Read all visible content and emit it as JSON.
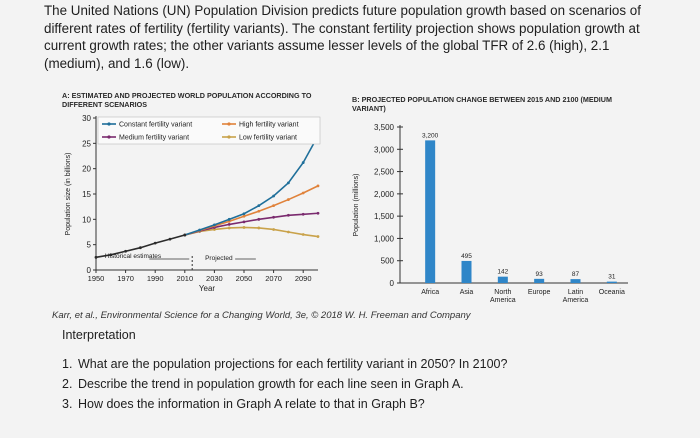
{
  "intro": "The United Nations (UN) Population Division predicts future population growth based on scenarios of different rates of fertility (fertility variants). The constant fertility projection shows population growth at current growth rates; the other variants assume lesser levels of the global TFR of 2.6 (high), 2.1 (medium), and 1.6 (low).",
  "credit": "Karr, et al., Environmental Science for a Changing World, 3e, © 2018 W. H. Freeman and Company",
  "interpretation": "Interpretation",
  "questions": [
    {
      "num": "1.",
      "text": "What are the population projections for each fertility variant in 2050? In 2100?"
    },
    {
      "num": "2.",
      "text": "Describe the trend in population growth for each line seen in Graph A."
    },
    {
      "num": "3.",
      "text": "How does the information in Graph A relate to that in Graph B?"
    }
  ],
  "colors": {
    "constant": "#1f6f9a",
    "high": "#e0823a",
    "medium": "#7a2a6e",
    "low": "#c9a24a",
    "bars": "#2f86c8"
  },
  "chart_data": [
    {
      "type": "line",
      "title": "A: ESTIMATED AND PROJECTED WORLD POPULATION ACCORDING TO DIFFERENT SCENARIOS",
      "xlabel": "Year",
      "ylabel": "Population size (in billions)",
      "xlim": [
        1950,
        2100
      ],
      "ylim": [
        0,
        30
      ],
      "xticks": [
        1950,
        1970,
        1990,
        2010,
        2030,
        2050,
        2070,
        2090
      ],
      "yticks": [
        0,
        5,
        10,
        15,
        20,
        25,
        30
      ],
      "legend_position": "top",
      "annotations": {
        "historical": "Historical estimates",
        "projected": "Projected"
      },
      "historical": {
        "x": [
          1950,
          1960,
          1970,
          1980,
          1990,
          2000,
          2010
        ],
        "y": [
          2.5,
          3.0,
          3.7,
          4.4,
          5.3,
          6.1,
          6.9
        ]
      },
      "series": [
        {
          "name": "Constant fertility variant",
          "key": "constant",
          "x": [
            2010,
            2020,
            2030,
            2040,
            2050,
            2060,
            2070,
            2080,
            2090,
            2100
          ],
          "y": [
            6.9,
            7.9,
            8.9,
            10.0,
            11.1,
            12.7,
            14.6,
            17.2,
            21.2,
            26.5
          ]
        },
        {
          "name": "High fertility variant",
          "key": "high",
          "x": [
            2010,
            2020,
            2030,
            2040,
            2050,
            2060,
            2070,
            2080,
            2090,
            2100
          ],
          "y": [
            6.9,
            7.8,
            8.7,
            9.6,
            10.6,
            11.6,
            12.7,
            13.9,
            15.2,
            16.6
          ]
        },
        {
          "name": "Medium fertility variant",
          "key": "medium",
          "x": [
            2010,
            2020,
            2030,
            2040,
            2050,
            2060,
            2070,
            2080,
            2090,
            2100
          ],
          "y": [
            6.9,
            7.7,
            8.4,
            9.0,
            9.5,
            10.0,
            10.4,
            10.8,
            11.0,
            11.2
          ]
        },
        {
          "name": "Low fertility variant",
          "key": "low",
          "x": [
            2010,
            2020,
            2030,
            2040,
            2050,
            2060,
            2070,
            2080,
            2090,
            2100
          ],
          "y": [
            6.9,
            7.6,
            8.0,
            8.3,
            8.4,
            8.3,
            8.0,
            7.5,
            7.0,
            6.6
          ]
        }
      ]
    },
    {
      "type": "bar",
      "title": "B: PROJECTED POPULATION CHANGE BETWEEN 2015 AND 2100 (MEDIUM VARIANT)",
      "ylabel": "Population (millions)",
      "ylim": [
        0,
        3500
      ],
      "yticks": [
        0,
        500,
        1000,
        1500,
        2000,
        2500,
        3000,
        3500
      ],
      "categories": [
        "Africa",
        "Asia",
        "North America",
        "Europe",
        "Latin America",
        "Oceania"
      ],
      "values": [
        3200,
        495,
        142,
        93,
        87,
        31
      ],
      "value_labels": [
        "3,200",
        "495",
        "142",
        "93",
        "87",
        "31"
      ],
      "ytick_labels": [
        "0",
        "500",
        "1,000",
        "1,500",
        "2,000",
        "2,500",
        "3,000",
        "3,500"
      ]
    }
  ]
}
